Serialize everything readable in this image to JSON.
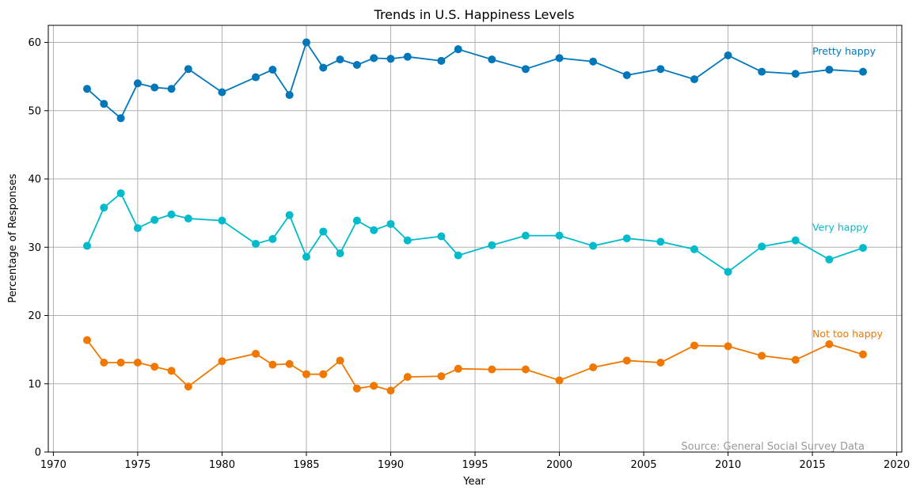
{
  "chart_data": {
    "type": "line",
    "title": "Trends in U.S. Happiness Levels",
    "xlabel": "Year",
    "ylabel": "Percentage of Responses",
    "xlim": [
      1969.7,
      2020.3
    ],
    "ylim": [
      0,
      62.5
    ],
    "xticks": [
      1970,
      1975,
      1980,
      1985,
      1990,
      1995,
      2000,
      2005,
      2010,
      2015,
      2020
    ],
    "yticks": [
      0,
      10,
      20,
      30,
      40,
      50,
      60
    ],
    "grid": true,
    "source": "Source: General Social Survey Data",
    "x": [
      1972,
      1973,
      1974,
      1975,
      1976,
      1977,
      1978,
      1980,
      1982,
      1983,
      1984,
      1985,
      1986,
      1987,
      1988,
      1989,
      1990,
      1991,
      1993,
      1994,
      1996,
      1998,
      2000,
      2002,
      2004,
      2006,
      2008,
      2010,
      2012,
      2014,
      2016,
      2018
    ],
    "series": [
      {
        "name": "Pretty happy",
        "color": "#0077bb",
        "values": [
          53.2,
          51.0,
          48.9,
          54.0,
          53.4,
          53.2,
          56.1,
          52.7,
          54.9,
          56.0,
          52.3,
          60.0,
          56.3,
          57.5,
          56.7,
          57.7,
          57.6,
          57.9,
          57.3,
          59.0,
          57.5,
          56.1,
          57.7,
          57.2,
          55.2,
          56.1,
          54.6,
          58.1,
          55.7,
          55.4,
          56.0,
          55.7
        ]
      },
      {
        "name": "Very happy",
        "color": "#00bbcc",
        "values": [
          30.2,
          35.8,
          37.9,
          32.8,
          34.0,
          34.8,
          34.2,
          33.9,
          30.5,
          31.2,
          34.7,
          28.6,
          32.3,
          29.1,
          33.9,
          32.5,
          33.4,
          31.0,
          31.6,
          28.8,
          30.3,
          31.7,
          31.7,
          30.2,
          31.3,
          30.8,
          29.7,
          26.4,
          30.1,
          31.0,
          28.2,
          29.9
        ]
      },
      {
        "name": "Not too happy",
        "color": "#f07800",
        "values": [
          16.4,
          13.1,
          13.1,
          13.1,
          12.5,
          11.9,
          9.6,
          13.3,
          14.4,
          12.8,
          12.9,
          11.4,
          11.4,
          13.4,
          9.3,
          9.7,
          9.0,
          11.0,
          11.1,
          12.2,
          12.1,
          12.1,
          10.5,
          12.4,
          13.4,
          13.1,
          15.6,
          15.5,
          14.1,
          13.5,
          15.8,
          14.3
        ]
      }
    ]
  }
}
